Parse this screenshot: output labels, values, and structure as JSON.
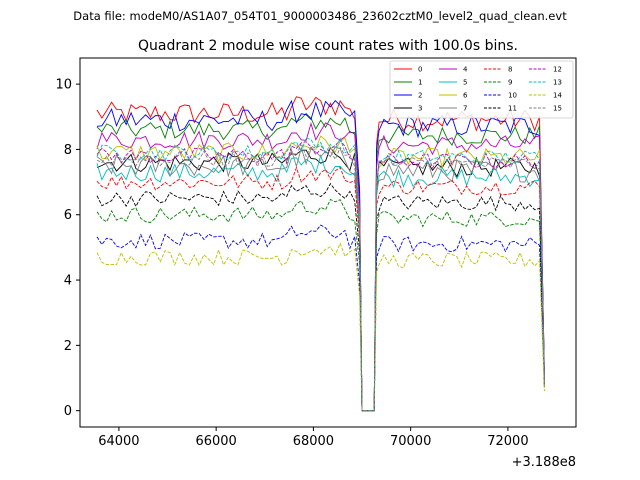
{
  "figure": {
    "header": "Data file: modeM0/AS1A07_054T01_9000003486_23602cztM0_level2_quad_clean.evt"
  },
  "chart_data": {
    "type": "line",
    "title": "Quadrant 2 module wise count rates with 100.0s bins.",
    "xlabel": "",
    "ylabel": "",
    "x_offset_label": "+3.188e8",
    "x_ticks": [
      64000,
      66000,
      68000,
      70000,
      72000
    ],
    "y_ticks": [
      0,
      2,
      4,
      6,
      8,
      10
    ],
    "xlim": [
      63200,
      73400
    ],
    "ylim": [
      -0.5,
      10.8
    ],
    "grid": false,
    "legend_position": "top-right",
    "gap": {
      "drop_start": 68950,
      "zero_until": 69250,
      "recover": 69350,
      "end": 72750
    },
    "series": [
      {
        "name": "0",
        "color": "#ff0000",
        "dash": "solid",
        "level": 9.1,
        "noise": 0.35,
        "end_value": 1.0
      },
      {
        "name": "1",
        "color": "#008000",
        "dash": "solid",
        "level": 8.6,
        "noise": 0.3,
        "end_value": 0.9
      },
      {
        "name": "2",
        "color": "#0000ff",
        "dash": "solid",
        "level": 8.9,
        "noise": 0.35,
        "end_value": 1.2
      },
      {
        "name": "3",
        "color": "#000000",
        "dash": "solid",
        "level": 7.6,
        "noise": 0.3,
        "end_value": 0.8
      },
      {
        "name": "4",
        "color": "#bf00bf",
        "dash": "solid",
        "level": 8.3,
        "noise": 0.3,
        "end_value": 1.0
      },
      {
        "name": "5",
        "color": "#00bfbf",
        "dash": "solid",
        "level": 7.3,
        "noise": 0.3,
        "end_value": 0.9
      },
      {
        "name": "6",
        "color": "#bfbf00",
        "dash": "solid",
        "level": 7.9,
        "noise": 0.3,
        "end_value": 0.7
      },
      {
        "name": "7",
        "color": "#808080",
        "dash": "solid",
        "level": 7.5,
        "noise": 0.35,
        "end_value": 0.8
      },
      {
        "name": "8",
        "color": "#ff0000",
        "dash": "dashed",
        "level": 7.0,
        "noise": 0.25,
        "end_value": 0.9
      },
      {
        "name": "9",
        "color": "#008000",
        "dash": "dashed",
        "level": 6.0,
        "noise": 0.25,
        "end_value": 0.8
      },
      {
        "name": "10",
        "color": "#0000ff",
        "dash": "dashed",
        "level": 5.2,
        "noise": 0.25,
        "end_value": 0.7
      },
      {
        "name": "11",
        "color": "#000000",
        "dash": "dashed",
        "level": 6.5,
        "noise": 0.25,
        "end_value": 0.8
      },
      {
        "name": "12",
        "color": "#bf00bf",
        "dash": "dashed",
        "level": 7.8,
        "noise": 0.25,
        "end_value": 0.9
      },
      {
        "name": "13",
        "color": "#00bfbf",
        "dash": "dashed",
        "level": 7.9,
        "noise": 0.25,
        "end_value": 0.8
      },
      {
        "name": "14",
        "color": "#bfbf00",
        "dash": "dashed",
        "level": 4.7,
        "noise": 0.25,
        "end_value": 0.6
      },
      {
        "name": "15",
        "color": "#808080",
        "dash": "dashed",
        "level": 7.7,
        "noise": 0.25,
        "end_value": 0.8
      }
    ]
  }
}
